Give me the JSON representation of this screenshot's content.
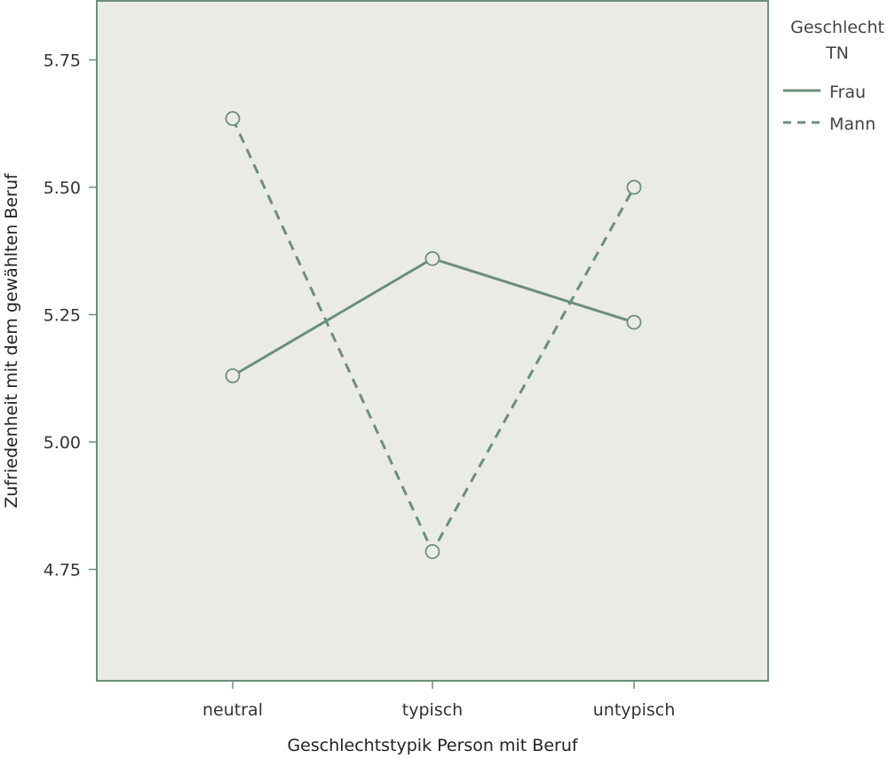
{
  "chart_data": {
    "type": "line",
    "categories": [
      "neutral",
      "typisch",
      "untypisch"
    ],
    "xlabel": "Geschlechtstypik Person mit Beruf",
    "ylabel": "Zufriedenheit mit dem gewählten Beruf",
    "ylim": [
      4.5,
      5.8
    ],
    "yticks": [
      "4.75",
      "5.00",
      "5.25",
      "5.50",
      "5.75"
    ],
    "grid": false,
    "legend": {
      "title_line1": "Geschlecht",
      "title_line2": "TN",
      "placement": "right"
    },
    "series": [
      {
        "name": "Frau",
        "values": [
          5.13,
          5.36,
          5.235
        ],
        "style": "solid"
      },
      {
        "name": "Mann",
        "values": [
          5.635,
          4.785,
          5.5
        ],
        "style": "dashed"
      }
    ],
    "colors": {
      "line": "#6b8f7a",
      "plot_background": "#ebebe6",
      "frame": "#6b8f7a"
    }
  }
}
